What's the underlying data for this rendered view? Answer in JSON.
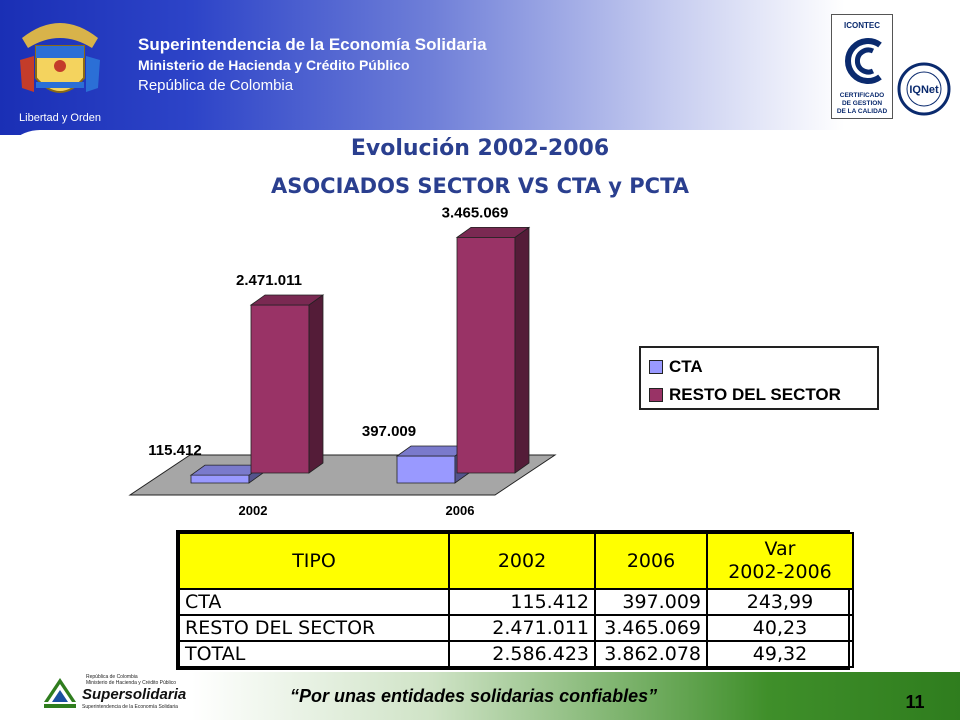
{
  "header": {
    "org_name": "Superintendencia de la Economía Solidaria",
    "ministry": "Ministerio de Hacienda y Crédito Público",
    "country": "República de Colombia",
    "crest_motto": "Libertad y Orden",
    "cert_top": "ICONTEC",
    "cert_line1": "CERTIFICADO",
    "cert_line2": "DE GESTION",
    "cert_line3": "DE LA CALIDAD",
    "iqnet": "IQNet"
  },
  "slide": {
    "title1": "Evolución 2002-2006",
    "title2": "ASOCIADOS SECTOR VS CTA y PCTA",
    "page_number": "11",
    "slogan": "“Por unas entidades solidarias confiables”"
  },
  "chart_data": {
    "type": "bar",
    "categories": [
      "2002",
      "2006"
    ],
    "series": [
      {
        "name": "CTA",
        "values": [
          115412,
          397009
        ],
        "labels": [
          "115.412",
          "397.009"
        ],
        "color": "#9999ff"
      },
      {
        "name": "RESTO DEL SECTOR",
        "values": [
          2471011,
          3465069
        ],
        "labels": [
          "2.471.011",
          "3.465.069"
        ],
        "color": "#993366"
      }
    ],
    "ylim": [
      0,
      3500000
    ],
    "legend_position": "right",
    "grid": false
  },
  "table": {
    "headers": [
      "TIPO",
      "2002",
      "2006",
      "Var",
      "2002-2006"
    ],
    "rows": [
      [
        "CTA",
        "115.412",
        "397.009",
        "243,99"
      ],
      [
        "RESTO DEL SECTOR",
        "2.471.011",
        "3.465.069",
        "40,23"
      ],
      [
        "TOTAL",
        "2.586.423",
        "3.862.078",
        "49,32"
      ]
    ]
  },
  "footer": {
    "logo_name": "Supersolidaria",
    "logo_line1": "República de Colombia",
    "logo_line2": "Ministerio de Hacienda y Crédito Público",
    "logo_line3": "Superintendencia de la Economía Solidaria"
  },
  "colors": {
    "title": "#2a3f8f",
    "table_header": "#ffff00",
    "cta": "#9999ff",
    "resto": "#993366"
  }
}
